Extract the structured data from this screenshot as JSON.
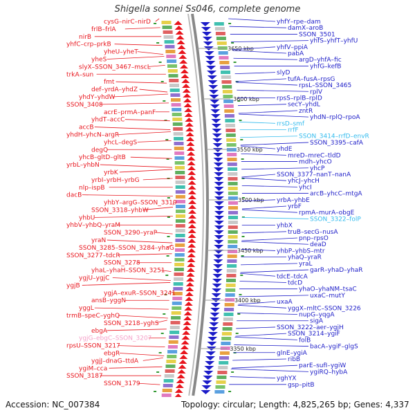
{
  "title": "Shigella sonnei Ss046, complete genome",
  "footer": {
    "accession": "Accession: NC_007384",
    "topology": "Topology: circular; Length: 4,825,265 bp; Genes: 4,337"
  },
  "colors": {
    "forward": "#e8141c",
    "reverse": "#1c1cc8",
    "rna": "#33bbee",
    "pseudo": "#f5a0c8",
    "backbone": "#888888",
    "tick": "#339933"
  },
  "ticks": [
    "3650 kbp",
    "3600 kbp",
    "3550 kbp",
    "3500 kbp",
    "3450 kbp",
    "3400 kbp",
    "3350 kbp"
  ],
  "left_labels": [
    "cysG",
    "nirC",
    "nirD",
    "frlB",
    "frlA",
    "nirB",
    "yhfC",
    "crp",
    "prkB",
    "yheU",
    "yheT",
    "yheS",
    "slyX",
    "SSON_3467",
    "mscL",
    "trkA",
    "sun",
    "fmt",
    "def",
    "yrdA",
    "yhdZ",
    "yhdY",
    "yhdW",
    "SSON_3408",
    "acrE",
    "prmA",
    "panF",
    "yhdT",
    "accC",
    "accB",
    "yhdH",
    "yhcN",
    "argR",
    "yhcL",
    "degS",
    "degQ",
    "yhcB",
    "gltD",
    "gltB",
    "yrbL",
    "yhbN",
    "yrbK",
    "yrbI",
    "yrbH",
    "yrbG",
    "nlp",
    "ispB",
    "dacB",
    "yhbY",
    "argG",
    "SSON_3319",
    "SSON_3318",
    "yhbW",
    "yhbU",
    "yhbV",
    "yhbQ",
    "yraM",
    "SSON_3290",
    "yraP",
    "yraN",
    "SSON_3285",
    "SSON_3284",
    "yhaG",
    "SSON_3277",
    "tdcR",
    "SSON_3278",
    "yhaL",
    "yhaH",
    "SSON_3251",
    "ygjU",
    "ygjC",
    "ygjB",
    "ygjA",
    "exuR",
    "SSON_3241",
    "ansB",
    "yggN",
    "yggL",
    "trmB",
    "speC",
    "yghQ",
    "SSON_3218",
    "yghS",
    "ebgA",
    "ygjG",
    "ebgC",
    "SSON_3207",
    "rpsU",
    "SSON_3217",
    "ebgR",
    "ygjJ",
    "dnaG",
    "ttdA",
    "ygiM",
    "cca",
    "SSON_3187",
    "SSON_3179"
  ],
  "right_labels": [
    "yhfY",
    "rpe",
    "dam",
    "damX",
    "aroB",
    "SSON_3501",
    "yhfS",
    "yhfT",
    "yhfU",
    "yhfV",
    "ppiA",
    "pabA",
    "argD",
    "yhfA",
    "fic",
    "yhfG",
    "kefB",
    "slyD",
    "tufA",
    "fusA",
    "rpsG",
    "rpsL",
    "SSON_3465",
    "rplV",
    "rpsS",
    "rplB",
    "rplD",
    "secY",
    "yhdL",
    "zntR",
    "yhdN",
    "rplQ",
    "rpoA",
    "rrsD",
    "smf",
    "rrfF",
    "SSON_3414",
    "rrfD",
    "envR",
    "SSON_3395",
    "cafA",
    "yhdE",
    "mreD",
    "mreC",
    "tldD",
    "mdh",
    "yhcO",
    "yhcP",
    "SSON_3377",
    "nanT",
    "nanA",
    "yhcJ",
    "yhcH",
    "yhcI",
    "arcB",
    "yhcC",
    "mtgA",
    "yrbA",
    "yhbE",
    "yrbF",
    "rpmA",
    "murA",
    "obgE",
    "SSON_3322",
    "folP",
    "yhbX",
    "truB",
    "secG",
    "nusA",
    "pnp",
    "rpsO",
    "deaD",
    "yhbP",
    "yhbS",
    "mtr",
    "yhaQ",
    "yraR",
    "yraL",
    "garR",
    "yhaD",
    "yhaR",
    "tdcE",
    "tdcA",
    "tdcD",
    "yhaO",
    "yhaNM",
    "tsaC",
    "uxaC",
    "mutY",
    "uxaA",
    "yggX",
    "mltC",
    "SSON_3226",
    "nupG",
    "yqgA",
    "sigA",
    "SSON_3222",
    "aer",
    "ygjH",
    "SSON_3214",
    "ygiF",
    "folB",
    "bacA",
    "ygiF",
    "glgS",
    "glnE",
    "ygiA",
    "ribB",
    "parE",
    "sufI",
    "ygiW",
    "ygiRQ",
    "hybA",
    "yghYX",
    "gsp",
    "pitB"
  ]
}
